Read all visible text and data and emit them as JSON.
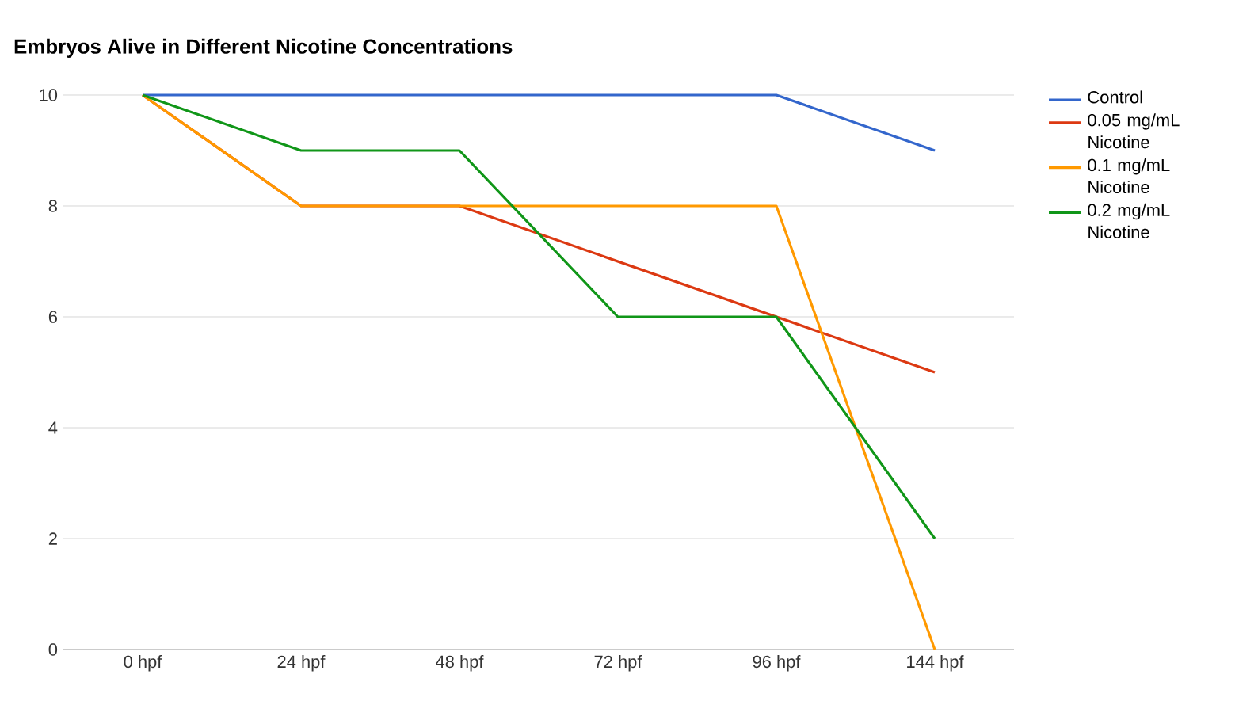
{
  "chart_data": {
    "type": "line",
    "title": "Embryos Alive in Different Nicotine Concentrations",
    "categories": [
      "0 hpf",
      "24 hpf",
      "48 hpf",
      "72 hpf",
      "96 hpf",
      "144 hpf"
    ],
    "series": [
      {
        "name": "Control",
        "color": "#3366cc",
        "values": [
          10,
          10,
          10,
          10,
          10,
          9
        ]
      },
      {
        "name": "0.05 mg/mL Nicotine",
        "color": "#dc3912",
        "values": [
          10,
          8,
          8,
          7,
          6,
          5
        ]
      },
      {
        "name": "0.1 mg/mL Nicotine",
        "color": "#ff9900",
        "values": [
          10,
          8,
          8,
          8,
          8,
          0
        ]
      },
      {
        "name": "0.2 mg/mL Nicotine",
        "color": "#109618",
        "values": [
          10,
          9,
          9,
          6,
          6,
          2
        ]
      }
    ],
    "ylim": [
      0,
      10
    ],
    "yticks": [
      0,
      2,
      4,
      6,
      8,
      10
    ],
    "grid": "y",
    "legend": "right",
    "marker": "none",
    "line_style": "solid"
  }
}
